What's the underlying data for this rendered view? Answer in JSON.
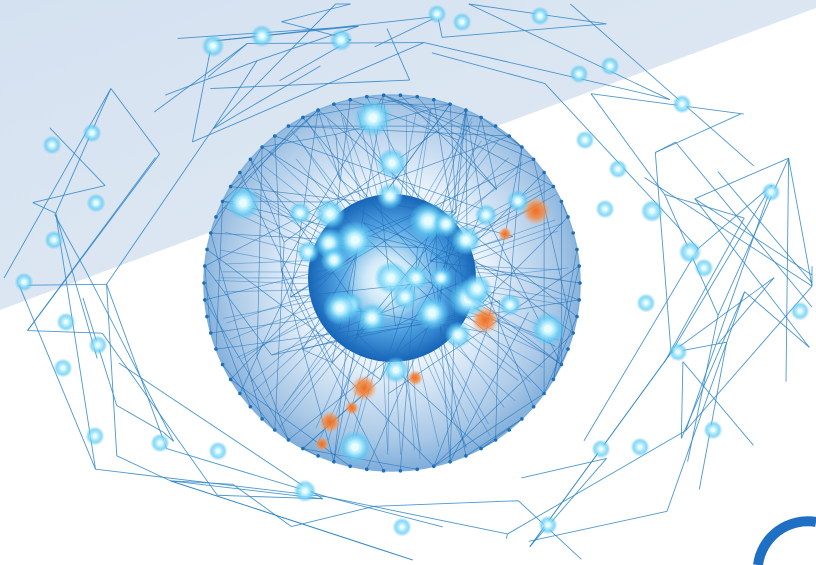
{
  "illustration": {
    "subject": "network-eye-icon",
    "colors": {
      "background": "#ffffff",
      "backdrop_band": "#dce6f2",
      "line": "#2e86c8",
      "node_glow": "#7fd6f7",
      "node_core": "#e8fbff",
      "iris_dark": "#1664b8",
      "iris_mid": "#4d9fe0",
      "pupil": "#bfe3f7",
      "sclera_edge": "#8fb7dc",
      "accent": "#f07a2c",
      "corner_ring": "#1f6fc4"
    }
  }
}
